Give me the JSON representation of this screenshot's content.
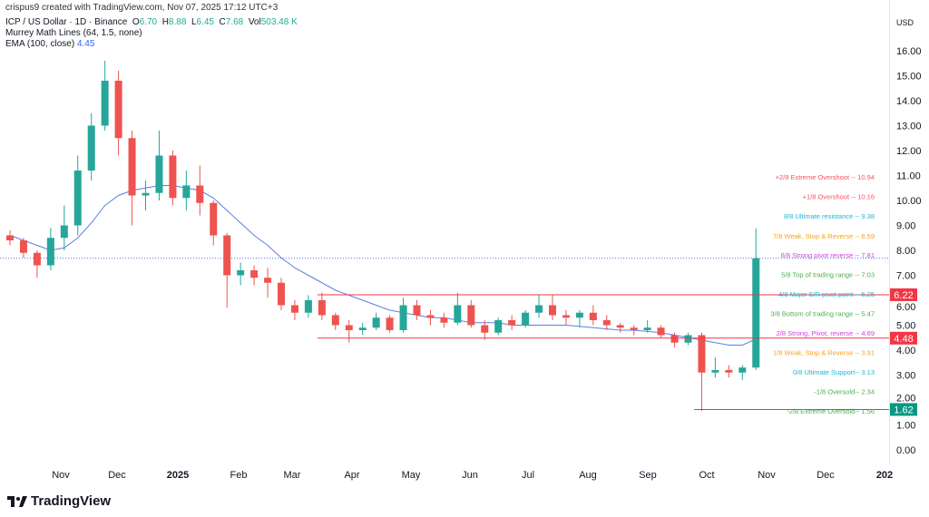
{
  "header": {
    "credit": "crispus9 created with TradingView.com, Nov 07, 2025 17:12 UTC+3",
    "symbol": "ICP / US Dollar · 1D · Binance",
    "o_label": "O",
    "o": "6.70",
    "h_label": "H",
    "h": "8.88",
    "l_label": "L",
    "l": "6.45",
    "c_label": "C",
    "c": "7.68",
    "vol_label": "Vol",
    "vol": "503.48 K",
    "murrey": "Murrey Math Lines (64, 1.5, none)",
    "ema_label": "EMA (100, close)",
    "ema": "4.45"
  },
  "currency": "USD",
  "logo": "TradingView",
  "colors": {
    "up": "#26a69a",
    "down": "#ef5350",
    "ema": "#5b7ee5",
    "red_line": "#f23645",
    "green_line": "#089981",
    "last": "#4f6ef0"
  },
  "chart_data": {
    "type": "candlestick",
    "interval": "1D (drawn weekly approximation)",
    "ylim": [
      0,
      16.8
    ],
    "y_ticks": [
      "0.00",
      "1.00",
      "2.00",
      "3.00",
      "4.00",
      "5.00",
      "6.00",
      "7.00",
      "8.00",
      "9.00",
      "10.00",
      "11.00",
      "12.00",
      "13.00",
      "14.00",
      "15.00",
      "16.00"
    ],
    "x_ticks": [
      "Nov",
      "Dec",
      "2025",
      "Feb",
      "Mar",
      "Apr",
      "May",
      "Jun",
      "Jul",
      "Aug",
      "Sep",
      "Oct",
      "Nov",
      "Dec",
      "202"
    ],
    "start": "2024-10-14",
    "candles": [
      [
        8.6,
        8.8,
        8.2,
        8.4
      ],
      [
        8.4,
        8.5,
        7.7,
        7.9
      ],
      [
        7.9,
        8.0,
        6.9,
        7.4
      ],
      [
        7.4,
        8.9,
        7.2,
        8.5
      ],
      [
        8.5,
        9.8,
        8.0,
        9.0
      ],
      [
        9.0,
        11.8,
        8.6,
        11.2
      ],
      [
        11.2,
        13.5,
        10.8,
        13.0
      ],
      [
        13.0,
        15.6,
        12.8,
        14.8
      ],
      [
        14.8,
        15.2,
        11.8,
        12.5
      ],
      [
        12.5,
        12.8,
        9.0,
        10.2
      ],
      [
        10.2,
        10.8,
        9.6,
        10.3
      ],
      [
        10.3,
        12.8,
        10.0,
        11.8
      ],
      [
        11.8,
        12.0,
        9.8,
        10.1
      ],
      [
        10.1,
        11.2,
        9.6,
        10.6
      ],
      [
        10.6,
        11.4,
        9.4,
        9.9
      ],
      [
        9.9,
        10.0,
        8.2,
        8.6
      ],
      [
        8.6,
        8.7,
        5.7,
        7.0
      ],
      [
        7.0,
        7.5,
        6.6,
        7.2
      ],
      [
        7.2,
        7.4,
        6.6,
        6.9
      ],
      [
        6.9,
        7.3,
        6.1,
        6.7
      ],
      [
        6.7,
        6.9,
        5.6,
        5.8
      ],
      [
        5.8,
        6.0,
        5.2,
        5.5
      ],
      [
        5.5,
        6.2,
        5.3,
        6.0
      ],
      [
        6.0,
        6.3,
        5.2,
        5.4
      ],
      [
        5.4,
        5.5,
        4.8,
        5.0
      ],
      [
        5.0,
        5.2,
        4.3,
        4.8
      ],
      [
        4.8,
        5.1,
        4.6,
        4.9
      ],
      [
        4.9,
        5.5,
        4.8,
        5.3
      ],
      [
        5.3,
        5.4,
        4.7,
        4.8
      ],
      [
        4.8,
        6.1,
        4.7,
        5.8
      ],
      [
        5.8,
        6.0,
        5.2,
        5.4
      ],
      [
        5.4,
        5.6,
        5.0,
        5.3
      ],
      [
        5.3,
        5.5,
        4.9,
        5.1
      ],
      [
        5.1,
        6.3,
        5.0,
        5.8
      ],
      [
        5.8,
        6.0,
        4.9,
        5.0
      ],
      [
        5.0,
        5.2,
        4.4,
        4.7
      ],
      [
        4.7,
        5.3,
        4.6,
        5.2
      ],
      [
        5.2,
        5.4,
        4.8,
        5.0
      ],
      [
        5.0,
        5.6,
        4.9,
        5.5
      ],
      [
        5.5,
        6.2,
        5.3,
        5.8
      ],
      [
        5.8,
        6.2,
        5.2,
        5.4
      ],
      [
        5.4,
        5.6,
        5.0,
        5.3
      ],
      [
        5.3,
        5.6,
        4.9,
        5.5
      ],
      [
        5.5,
        5.8,
        5.0,
        5.2
      ],
      [
        5.2,
        5.4,
        4.8,
        5.0
      ],
      [
        5.0,
        5.1,
        4.7,
        4.9
      ],
      [
        4.9,
        5.0,
        4.6,
        4.8
      ],
      [
        4.8,
        5.2,
        4.7,
        4.9
      ],
      [
        4.9,
        5.0,
        4.5,
        4.6
      ],
      [
        4.6,
        4.7,
        4.1,
        4.3
      ],
      [
        4.3,
        4.7,
        4.2,
        4.6
      ],
      [
        4.6,
        4.7,
        1.56,
        3.1
      ],
      [
        3.1,
        3.7,
        2.9,
        3.2
      ],
      [
        3.2,
        3.4,
        2.9,
        3.1
      ],
      [
        3.1,
        3.4,
        2.8,
        3.3
      ],
      [
        3.3,
        8.88,
        3.2,
        7.68
      ]
    ],
    "ema": [
      8.6,
      8.4,
      8.2,
      8.0,
      8.1,
      8.5,
      9.1,
      9.8,
      10.2,
      10.4,
      10.5,
      10.6,
      10.6,
      10.5,
      10.4,
      10.1,
      9.6,
      9.1,
      8.6,
      8.2,
      7.7,
      7.3,
      7.0,
      6.7,
      6.4,
      6.2,
      6.0,
      5.8,
      5.6,
      5.5,
      5.4,
      5.3,
      5.3,
      5.2,
      5.1,
      5.1,
      5.1,
      5.0,
      5.0,
      5.0,
      5.0,
      5.0,
      4.95,
      4.9,
      4.85,
      4.8,
      4.8,
      4.75,
      4.7,
      4.6,
      4.5,
      4.4,
      4.3,
      4.2,
      4.2,
      4.45
    ],
    "levels": [
      {
        "label": "+2/8 Extreme Overshoot --  10.94",
        "value": 10.94,
        "color": "#f7525f"
      },
      {
        "label": "+1/8 Overshoot --  10.16",
        "value": 10.16,
        "color": "#f7525f"
      },
      {
        "label": "8/8 Ultimate resistance --  9.38",
        "value": 9.38,
        "color": "#22b5d1"
      },
      {
        "label": "7/8 Weak, Stop & Reverse --  8.59",
        "value": 8.59,
        "color": "#f7a21b"
      },
      {
        "label": "6/8 Strong pivot reverse --  7.81",
        "value": 7.81,
        "color": "#d140e0"
      },
      {
        "label": "5/8 Top of trading range --  7.03",
        "value": 7.03,
        "color": "#4caf50"
      },
      {
        "label": "4/8 Major S/R pivot point --  6.25",
        "value": 6.25,
        "color": "#22b5d1"
      },
      {
        "label": "3/8 Bottom of trading range --  5.47",
        "value": 5.47,
        "color": "#4caf50"
      },
      {
        "label": "2/8 Strong, Pivot, reverse --  4.69",
        "value": 4.69,
        "color": "#d140e0"
      },
      {
        "label": "1/8 Weak, Stop & Reverse --  3.91",
        "value": 3.91,
        "color": "#f7a21b"
      },
      {
        "label": "0/8 Ultimate Support--  3.13",
        "value": 3.13,
        "color": "#22b5d1"
      },
      {
        "label": "-1/8 Oversold--  2.34",
        "value": 2.34,
        "color": "#4caf50"
      },
      {
        "label": "-2/8 Extreme Oversold--  1.56",
        "value": 1.56,
        "color": "#4caf50"
      }
    ],
    "hlines": [
      {
        "value": 6.22,
        "label": "6.22",
        "color": "#f23645"
      },
      {
        "value": 4.48,
        "label": "4.48",
        "color": "#f23645"
      },
      {
        "value": 1.62,
        "label": "1.62",
        "color": "#089981"
      }
    ],
    "last_price": 7.68
  }
}
